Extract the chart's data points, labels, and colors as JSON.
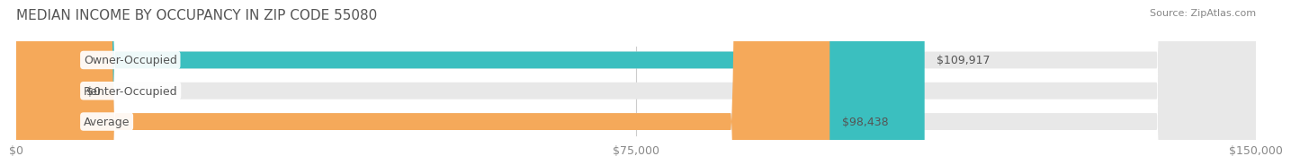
{
  "title": "MEDIAN INCOME BY OCCUPANCY IN ZIP CODE 55080",
  "source": "Source: ZipAtlas.com",
  "categories": [
    "Owner-Occupied",
    "Renter-Occupied",
    "Average"
  ],
  "values": [
    109917,
    0,
    98438
  ],
  "bar_colors": [
    "#3bbfbf",
    "#c9aed6",
    "#f5a95a"
  ],
  "bar_bg_color": "#eeeeee",
  "label_values": [
    "$109,917",
    "$0",
    "$98,438"
  ],
  "xlim": [
    0,
    150000
  ],
  "xticks": [
    0,
    75000,
    150000
  ],
  "xtick_labels": [
    "$0",
    "$75,000",
    "$150,000"
  ],
  "title_fontsize": 11,
  "source_fontsize": 8,
  "label_fontsize": 9,
  "tick_fontsize": 9,
  "background_color": "#ffffff",
  "bar_bg_alpha": 0.35,
  "grid_color": "#cccccc"
}
